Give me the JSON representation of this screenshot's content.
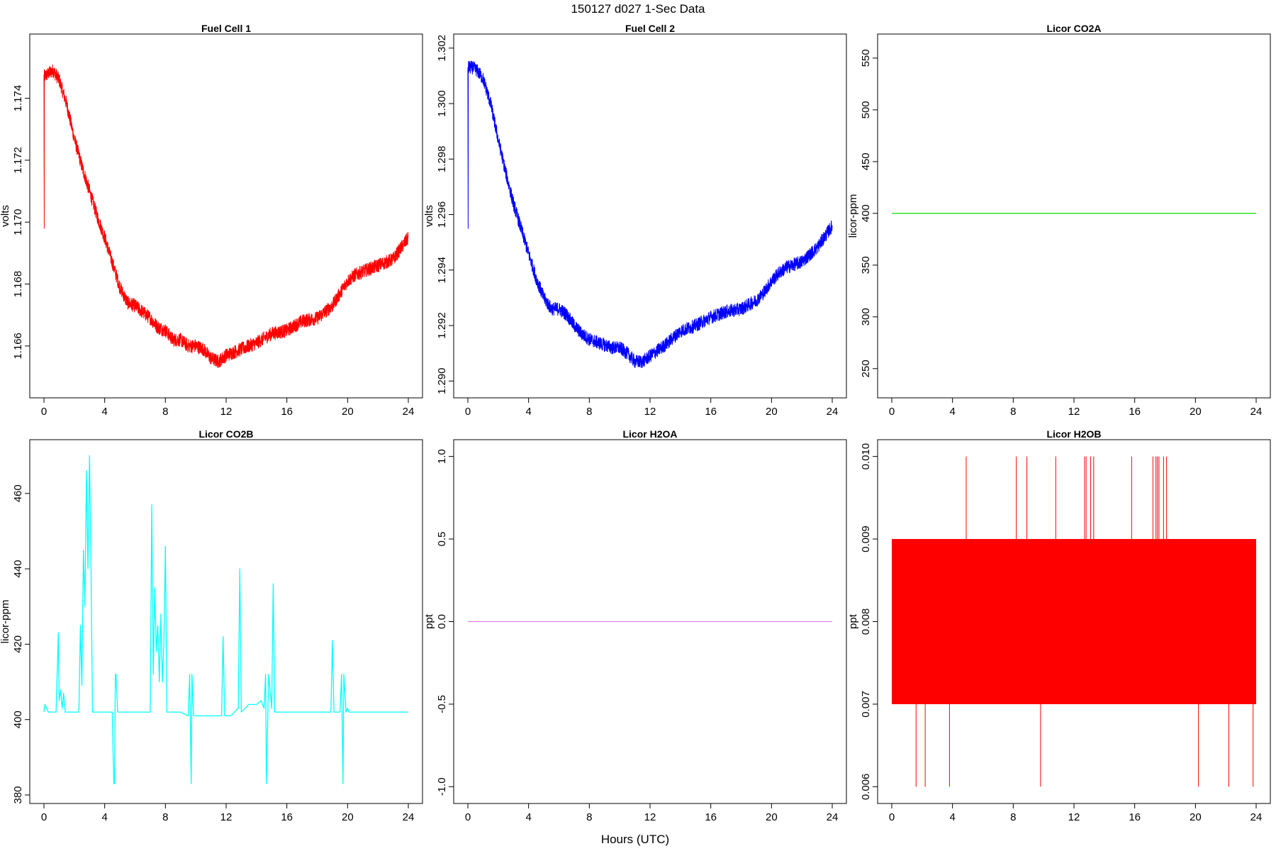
{
  "figure": {
    "title": "150127   d027   1-Sec Data",
    "xlabel": "Hours (UTC)"
  },
  "chart_data": [
    {
      "type": "line",
      "title": "Fuel Cell 1",
      "ylabel": "volts",
      "xlim": [
        0,
        24
      ],
      "ylim": [
        1.1646,
        1.1758
      ],
      "xticks": [
        0,
        4,
        8,
        12,
        16,
        20,
        24
      ],
      "yticks": [
        1.166,
        1.168,
        1.17,
        1.172,
        1.174
      ],
      "ytick_labels": [
        "1.166",
        "1.168",
        "1.170",
        "1.172",
        "1.174"
      ],
      "color": "#ff0000",
      "noise": 0.00022,
      "spike": {
        "x": 0.02,
        "y": 1.1698
      },
      "x": [
        0,
        0.3,
        0.6,
        1.0,
        1.5,
        2.0,
        2.5,
        3.0,
        3.5,
        4.0,
        4.5,
        5.0,
        5.5,
        6.0,
        6.5,
        7.0,
        7.5,
        8.0,
        8.5,
        9.0,
        9.5,
        10.0,
        10.5,
        11.0,
        11.5,
        12.0,
        13.0,
        14.0,
        15.0,
        16.0,
        17.0,
        18.0,
        19.0,
        19.5,
        20.0,
        20.5,
        21.0,
        22.0,
        23.0,
        24.0
      ],
      "y": [
        1.1747,
        1.1748,
        1.1749,
        1.1746,
        1.1738,
        1.1727,
        1.1718,
        1.171,
        1.1702,
        1.1695,
        1.1687,
        1.1679,
        1.1674,
        1.1673,
        1.1671,
        1.1669,
        1.1666,
        1.1665,
        1.1662,
        1.1662,
        1.166,
        1.166,
        1.1659,
        1.1656,
        1.1655,
        1.1657,
        1.1659,
        1.1661,
        1.1664,
        1.1665,
        1.1668,
        1.1669,
        1.1673,
        1.1677,
        1.1681,
        1.1683,
        1.1684,
        1.1686,
        1.1688,
        1.1695
      ]
    },
    {
      "type": "line",
      "title": "Fuel Cell 2",
      "ylabel": "volts",
      "xlim": [
        0,
        24
      ],
      "ylim": [
        1.2897,
        1.3022
      ],
      "xticks": [
        0,
        4,
        8,
        12,
        16,
        20,
        24
      ],
      "yticks": [
        1.29,
        1.292,
        1.294,
        1.296,
        1.298,
        1.3,
        1.302
      ],
      "ytick_labels": [
        "1.290",
        "1.292",
        "1.294",
        "1.296",
        "1.298",
        "1.300",
        "1.302"
      ],
      "color": "#0000ff",
      "noise": 0.00024,
      "spike": {
        "x": 0.02,
        "y": 1.2955
      },
      "x": [
        0,
        0.3,
        0.6,
        1.0,
        1.5,
        2.0,
        2.5,
        3.0,
        3.5,
        4.0,
        4.5,
        5.0,
        5.5,
        6.0,
        6.5,
        7.0,
        7.5,
        8.0,
        8.5,
        9.0,
        9.5,
        10.0,
        10.5,
        11.0,
        11.5,
        12.0,
        13.0,
        14.0,
        15.0,
        16.0,
        17.0,
        18.0,
        19.0,
        19.5,
        20.0,
        20.5,
        21.0,
        22.0,
        23.0,
        24.0
      ],
      "y": [
        1.3013,
        1.3013,
        1.3012,
        1.3009,
        1.3,
        1.2987,
        1.2975,
        1.2964,
        1.2955,
        1.2946,
        1.2937,
        1.293,
        1.2926,
        1.2926,
        1.2924,
        1.292,
        1.2917,
        1.2915,
        1.2914,
        1.2913,
        1.2912,
        1.2912,
        1.291,
        1.2907,
        1.2907,
        1.2909,
        1.2913,
        1.2918,
        1.292,
        1.2923,
        1.2925,
        1.2926,
        1.2929,
        1.2932,
        1.2936,
        1.2939,
        1.2941,
        1.2943,
        1.2948,
        1.2956
      ]
    },
    {
      "type": "line",
      "title": "Licor CO2A",
      "ylabel": "licor-ppm",
      "xlim": [
        0,
        24
      ],
      "ylim": [
        230,
        565
      ],
      "xticks": [
        0,
        4,
        8,
        12,
        16,
        20,
        24
      ],
      "yticks": [
        250,
        300,
        350,
        400,
        450,
        500,
        550
      ],
      "ytick_labels": [
        "250",
        "300",
        "350",
        "400",
        "450",
        "500",
        "550"
      ],
      "color": "#00dd00",
      "x": [
        0,
        24
      ],
      "y": [
        400,
        400
      ]
    },
    {
      "type": "line",
      "title": "Licor CO2B",
      "ylabel": "licor-ppm",
      "xlim": [
        0,
        24
      ],
      "ylim": [
        380,
        472
      ],
      "xticks": [
        0,
        4,
        8,
        12,
        16,
        20,
        24
      ],
      "yticks": [
        380,
        400,
        420,
        440,
        460
      ],
      "ytick_labels": [
        "380",
        "400",
        "420",
        "440",
        "460"
      ],
      "color": "#00ffff",
      "x": [
        0,
        0.05,
        0.3,
        0.8,
        0.95,
        1.0,
        1.1,
        1.2,
        1.3,
        1.4,
        1.5,
        1.6,
        1.7,
        1.9,
        2.3,
        2.4,
        2.5,
        2.6,
        2.7,
        2.8,
        2.9,
        3.0,
        3.1,
        3.2,
        3.5,
        4.5,
        4.6,
        4.65,
        4.7,
        4.75,
        4.85,
        5.0,
        6.0,
        7.0,
        7.1,
        7.2,
        7.3,
        7.4,
        7.5,
        7.6,
        7.7,
        7.8,
        7.9,
        8.0,
        8.1,
        8.3,
        9.0,
        9.5,
        9.6,
        9.7,
        9.75,
        9.85,
        10.0,
        11.0,
        11.7,
        11.8,
        11.9,
        12.3,
        12.8,
        12.9,
        13.0,
        13.5,
        14.0,
        14.3,
        14.5,
        14.6,
        14.65,
        14.8,
        15.0,
        15.1,
        15.2,
        15.5,
        17.0,
        18.0,
        18.9,
        19.0,
        19.1,
        19.5,
        19.6,
        19.7,
        19.75,
        19.9,
        20.0,
        20.1,
        20.5,
        21.0,
        22.0,
        23.0,
        24.0
      ],
      "y": [
        402,
        404,
        402,
        402,
        423,
        405,
        408,
        403,
        407,
        402,
        402,
        402,
        402,
        402,
        402,
        425,
        409,
        445,
        430,
        466,
        440,
        470,
        440,
        402,
        402,
        402,
        383,
        383,
        412,
        412,
        402,
        402,
        402,
        402,
        457,
        412,
        435,
        418,
        425,
        410,
        428,
        410,
        420,
        446,
        402,
        402,
        402,
        401,
        412,
        383,
        412,
        401,
        401,
        401,
        401,
        422,
        401,
        401,
        403,
        440,
        402,
        404,
        404,
        405,
        403,
        412,
        383,
        412,
        403,
        436,
        402,
        402,
        402,
        402,
        402,
        421,
        402,
        402,
        412,
        383,
        412,
        402,
        403,
        402,
        402,
        402,
        402,
        402,
        402
      ]
    },
    {
      "type": "line",
      "title": "Licor H2OA",
      "ylabel": "ppt",
      "xlim": [
        0,
        24
      ],
      "ylim": [
        -1.05,
        1.05
      ],
      "xticks": [
        0,
        4,
        8,
        12,
        16,
        20,
        24
      ],
      "yticks": [
        -1.0,
        -0.5,
        0.0,
        0.5,
        1.0
      ],
      "ytick_labels": [
        "-1.0",
        "-0.5",
        "0.0",
        "0.5",
        "1.0"
      ],
      "color": "#dd88dd",
      "x": [
        0,
        24
      ],
      "y": [
        0,
        0
      ]
    },
    {
      "type": "line",
      "title": "Licor H2OB",
      "ylabel": "ppt",
      "xlim": [
        0,
        24
      ],
      "ylim": [
        0.0059,
        0.0101
      ],
      "xticks": [
        0,
        4,
        8,
        12,
        16,
        20,
        24
      ],
      "yticks": [
        0.006,
        0.007,
        0.008,
        0.009,
        0.01
      ],
      "ytick_labels": [
        "0.006",
        "0.007",
        "0.008",
        "0.009",
        "0.010"
      ],
      "color": "#ff0000",
      "band": [
        0.007,
        0.009
      ],
      "spikes_high": [
        4.9,
        8.2,
        8.9,
        10.8,
        12.7,
        12.8,
        13.1,
        13.3,
        15.8,
        17.2,
        17.4,
        17.5,
        17.6,
        17.9,
        18.1
      ],
      "spikes_low": [
        1.6,
        2.2,
        3.8,
        9.8,
        20.2,
        22.2,
        23.8
      ]
    }
  ]
}
